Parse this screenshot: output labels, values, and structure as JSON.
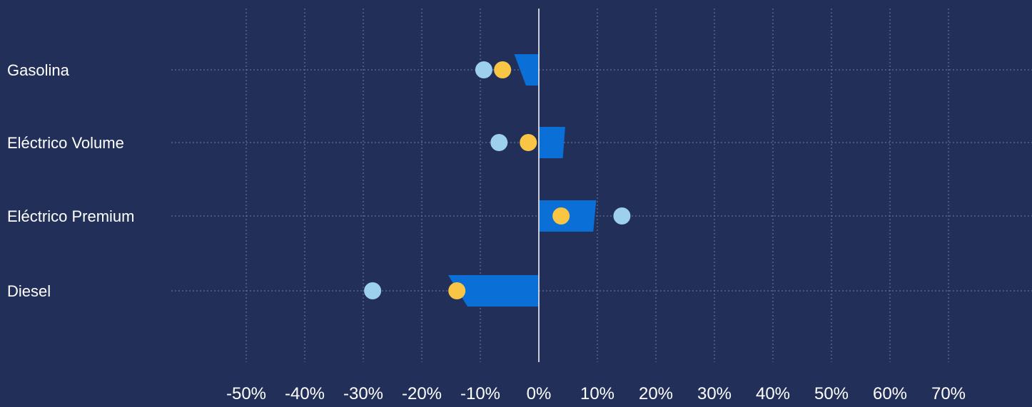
{
  "colors": {
    "background": "#223059",
    "bar": "#0a6fd6",
    "dot_light": "#9dd0ec",
    "dot_yellow": "#f8c545",
    "grid": "#6d7ea6",
    "zero_line": "#c8cdd8"
  },
  "chart_data": {
    "type": "bar",
    "orientation": "horizontal",
    "categories": [
      "Gasolina",
      "Eléctrico Volume",
      "Eléctrico Premium",
      "Diesel"
    ],
    "xlim": [
      -50,
      70
    ],
    "ticks": [
      -50,
      -40,
      -30,
      -20,
      -10,
      0,
      10,
      20,
      30,
      40,
      50,
      60,
      70
    ],
    "tick_labels": [
      "-50%",
      "-40%",
      "-30%",
      "-20%",
      "-10%",
      "0%",
      "10%",
      "20%",
      "30%",
      "40%",
      "50%",
      "60%",
      "70%"
    ],
    "grid": true,
    "bars": [
      {
        "category": "Gasolina",
        "top_value": -4.2,
        "bottom_value": -2.2
      },
      {
        "category": "Eléctrico Volume",
        "top_value": 4.5,
        "bottom_value": 4.1
      },
      {
        "category": "Eléctrico Premium",
        "top_value": 9.8,
        "bottom_value": 9.3
      },
      {
        "category": "Diesel",
        "top_value": -15.5,
        "bottom_value": -12.2
      }
    ],
    "series": [
      {
        "values": [
          -9.4,
          -6.8,
          14.2,
          -28.4
        ]
      },
      {
        "values": [
          -6.2,
          -1.8,
          3.8,
          -14.0
        ]
      }
    ]
  }
}
